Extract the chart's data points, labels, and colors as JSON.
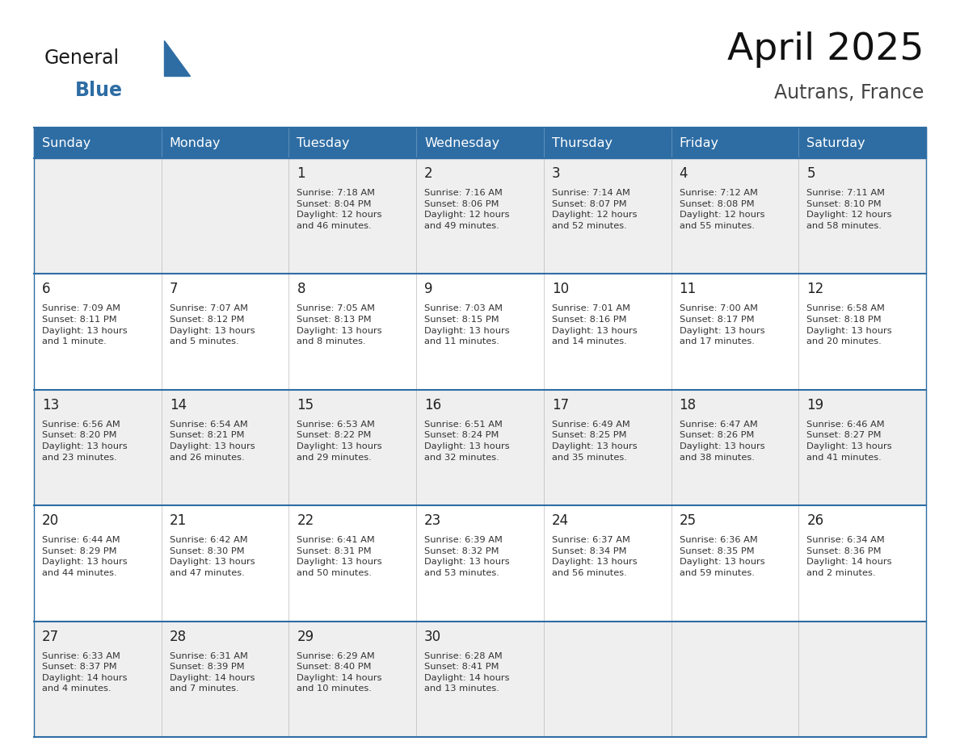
{
  "title": "April 2025",
  "subtitle": "Autrans, France",
  "header_bg": "#2E6DA4",
  "header_text_color": "#FFFFFF",
  "cell_bg_light": "#EFEFEF",
  "cell_bg_white": "#FFFFFF",
  "day_number_color": "#222222",
  "cell_text_color": "#333333",
  "separator_color": "#2E6DA4",
  "days_of_week": [
    "Sunday",
    "Monday",
    "Tuesday",
    "Wednesday",
    "Thursday",
    "Friday",
    "Saturday"
  ],
  "weeks": [
    [
      {
        "day": "",
        "sunrise": "",
        "sunset": "",
        "daylight": ""
      },
      {
        "day": "",
        "sunrise": "",
        "sunset": "",
        "daylight": ""
      },
      {
        "day": "1",
        "sunrise": "Sunrise: 7:18 AM",
        "sunset": "Sunset: 8:04 PM",
        "daylight": "Daylight: 12 hours\nand 46 minutes."
      },
      {
        "day": "2",
        "sunrise": "Sunrise: 7:16 AM",
        "sunset": "Sunset: 8:06 PM",
        "daylight": "Daylight: 12 hours\nand 49 minutes."
      },
      {
        "day": "3",
        "sunrise": "Sunrise: 7:14 AM",
        "sunset": "Sunset: 8:07 PM",
        "daylight": "Daylight: 12 hours\nand 52 minutes."
      },
      {
        "day": "4",
        "sunrise": "Sunrise: 7:12 AM",
        "sunset": "Sunset: 8:08 PM",
        "daylight": "Daylight: 12 hours\nand 55 minutes."
      },
      {
        "day": "5",
        "sunrise": "Sunrise: 7:11 AM",
        "sunset": "Sunset: 8:10 PM",
        "daylight": "Daylight: 12 hours\nand 58 minutes."
      }
    ],
    [
      {
        "day": "6",
        "sunrise": "Sunrise: 7:09 AM",
        "sunset": "Sunset: 8:11 PM",
        "daylight": "Daylight: 13 hours\nand 1 minute."
      },
      {
        "day": "7",
        "sunrise": "Sunrise: 7:07 AM",
        "sunset": "Sunset: 8:12 PM",
        "daylight": "Daylight: 13 hours\nand 5 minutes."
      },
      {
        "day": "8",
        "sunrise": "Sunrise: 7:05 AM",
        "sunset": "Sunset: 8:13 PM",
        "daylight": "Daylight: 13 hours\nand 8 minutes."
      },
      {
        "day": "9",
        "sunrise": "Sunrise: 7:03 AM",
        "sunset": "Sunset: 8:15 PM",
        "daylight": "Daylight: 13 hours\nand 11 minutes."
      },
      {
        "day": "10",
        "sunrise": "Sunrise: 7:01 AM",
        "sunset": "Sunset: 8:16 PM",
        "daylight": "Daylight: 13 hours\nand 14 minutes."
      },
      {
        "day": "11",
        "sunrise": "Sunrise: 7:00 AM",
        "sunset": "Sunset: 8:17 PM",
        "daylight": "Daylight: 13 hours\nand 17 minutes."
      },
      {
        "day": "12",
        "sunrise": "Sunrise: 6:58 AM",
        "sunset": "Sunset: 8:18 PM",
        "daylight": "Daylight: 13 hours\nand 20 minutes."
      }
    ],
    [
      {
        "day": "13",
        "sunrise": "Sunrise: 6:56 AM",
        "sunset": "Sunset: 8:20 PM",
        "daylight": "Daylight: 13 hours\nand 23 minutes."
      },
      {
        "day": "14",
        "sunrise": "Sunrise: 6:54 AM",
        "sunset": "Sunset: 8:21 PM",
        "daylight": "Daylight: 13 hours\nand 26 minutes."
      },
      {
        "day": "15",
        "sunrise": "Sunrise: 6:53 AM",
        "sunset": "Sunset: 8:22 PM",
        "daylight": "Daylight: 13 hours\nand 29 minutes."
      },
      {
        "day": "16",
        "sunrise": "Sunrise: 6:51 AM",
        "sunset": "Sunset: 8:24 PM",
        "daylight": "Daylight: 13 hours\nand 32 minutes."
      },
      {
        "day": "17",
        "sunrise": "Sunrise: 6:49 AM",
        "sunset": "Sunset: 8:25 PM",
        "daylight": "Daylight: 13 hours\nand 35 minutes."
      },
      {
        "day": "18",
        "sunrise": "Sunrise: 6:47 AM",
        "sunset": "Sunset: 8:26 PM",
        "daylight": "Daylight: 13 hours\nand 38 minutes."
      },
      {
        "day": "19",
        "sunrise": "Sunrise: 6:46 AM",
        "sunset": "Sunset: 8:27 PM",
        "daylight": "Daylight: 13 hours\nand 41 minutes."
      }
    ],
    [
      {
        "day": "20",
        "sunrise": "Sunrise: 6:44 AM",
        "sunset": "Sunset: 8:29 PM",
        "daylight": "Daylight: 13 hours\nand 44 minutes."
      },
      {
        "day": "21",
        "sunrise": "Sunrise: 6:42 AM",
        "sunset": "Sunset: 8:30 PM",
        "daylight": "Daylight: 13 hours\nand 47 minutes."
      },
      {
        "day": "22",
        "sunrise": "Sunrise: 6:41 AM",
        "sunset": "Sunset: 8:31 PM",
        "daylight": "Daylight: 13 hours\nand 50 minutes."
      },
      {
        "day": "23",
        "sunrise": "Sunrise: 6:39 AM",
        "sunset": "Sunset: 8:32 PM",
        "daylight": "Daylight: 13 hours\nand 53 minutes."
      },
      {
        "day": "24",
        "sunrise": "Sunrise: 6:37 AM",
        "sunset": "Sunset: 8:34 PM",
        "daylight": "Daylight: 13 hours\nand 56 minutes."
      },
      {
        "day": "25",
        "sunrise": "Sunrise: 6:36 AM",
        "sunset": "Sunset: 8:35 PM",
        "daylight": "Daylight: 13 hours\nand 59 minutes."
      },
      {
        "day": "26",
        "sunrise": "Sunrise: 6:34 AM",
        "sunset": "Sunset: 8:36 PM",
        "daylight": "Daylight: 14 hours\nand 2 minutes."
      }
    ],
    [
      {
        "day": "27",
        "sunrise": "Sunrise: 6:33 AM",
        "sunset": "Sunset: 8:37 PM",
        "daylight": "Daylight: 14 hours\nand 4 minutes."
      },
      {
        "day": "28",
        "sunrise": "Sunrise: 6:31 AM",
        "sunset": "Sunset: 8:39 PM",
        "daylight": "Daylight: 14 hours\nand 7 minutes."
      },
      {
        "day": "29",
        "sunrise": "Sunrise: 6:29 AM",
        "sunset": "Sunset: 8:40 PM",
        "daylight": "Daylight: 14 hours\nand 10 minutes."
      },
      {
        "day": "30",
        "sunrise": "Sunrise: 6:28 AM",
        "sunset": "Sunset: 8:41 PM",
        "daylight": "Daylight: 14 hours\nand 13 minutes."
      },
      {
        "day": "",
        "sunrise": "",
        "sunset": "",
        "daylight": ""
      },
      {
        "day": "",
        "sunrise": "",
        "sunset": "",
        "daylight": ""
      },
      {
        "day": "",
        "sunrise": "",
        "sunset": "",
        "daylight": ""
      }
    ]
  ],
  "logo_color_general": "#1a1a1a",
  "logo_color_blue": "#2E6DA4"
}
